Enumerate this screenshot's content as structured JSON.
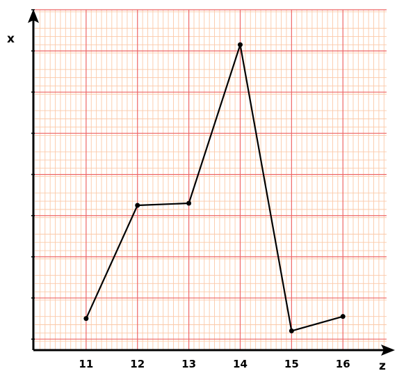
{
  "chart_data": {
    "type": "line",
    "title": "",
    "xlabel": "z",
    "ylabel": "x",
    "x": [
      11,
      12,
      13,
      14,
      15,
      16
    ],
    "y": [
      0.5,
      3.25,
      3.3,
      7.15,
      0.2,
      0.55
    ],
    "x_ticks": [
      "11",
      "12",
      "13",
      "14",
      "15",
      "16"
    ],
    "xlim": [
      10,
      16.85
    ],
    "ylim": [
      -0.25,
      8
    ],
    "grid": true,
    "y_tick_labels_shown": false,
    "line_color": "#000000",
    "marker_color": "#000000"
  },
  "colors": {
    "minor_grid": "#fbc9a8",
    "major_grid": "#ee6666",
    "background": "#ffffff",
    "axis": "#000000"
  }
}
